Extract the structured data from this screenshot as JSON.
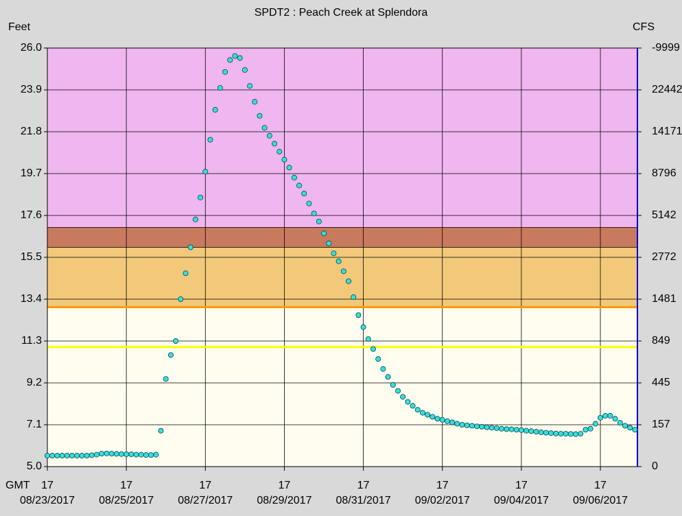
{
  "chart_data": {
    "type": "scatter",
    "title": "SPDT2  :  Peach Creek at Splendora",
    "ylabel": "Feet",
    "y2label": "CFS",
    "xlabel": "GMT",
    "ylim": [
      5.0,
      26.0
    ],
    "yticks": [
      {
        "value": 5.0,
        "label": "5.0"
      },
      7.1,
      9.2,
      11.3,
      13.4,
      15.5,
      17.6,
      19.7,
      21.8,
      23.9,
      {
        "value": 26.0,
        "label": "26.0"
      }
    ],
    "y2_labels": [
      "0",
      "157",
      "445",
      "849",
      "1481",
      "2772",
      "5142",
      "8796",
      "14171",
      "22442",
      "-9999"
    ],
    "xlim": [
      "2017-08-23T17:00",
      "2017-09-07T15:30"
    ],
    "xticks": [
      {
        "value": "2017-08-23T17:00",
        "label": "17"
      },
      {
        "value": "2017-08-25T17:00",
        "label": "17"
      },
      {
        "value": "2017-08-27T17:00",
        "label": "17"
      },
      {
        "value": "2017-08-29T17:00",
        "label": "17"
      },
      {
        "value": "2017-08-31T17:00",
        "label": "17"
      },
      {
        "value": "2017-09-02T17:00",
        "label": "17"
      },
      {
        "value": "2017-09-04T17:00",
        "label": "17"
      },
      {
        "value": "2017-09-06T17:00",
        "label": "17"
      }
    ],
    "xtick_dates": [
      "08/23/2017",
      "08/25/2017",
      "08/27/2017",
      "08/29/2017",
      "08/31/2017",
      "09/02/2017",
      "09/04/2017",
      "09/06/2017"
    ],
    "grid": true,
    "bands": [
      {
        "from": 17.0,
        "to": 26.0,
        "color": "#efb6ef"
      },
      {
        "from": 16.0,
        "to": 17.0,
        "color": "#c87a5e"
      },
      {
        "from": 13.0,
        "to": 16.0,
        "color": "#f2c97a"
      },
      {
        "from": 5.0,
        "to": 13.0,
        "color": "#fffdf0"
      }
    ],
    "stage_lines": [
      {
        "value": 13.0,
        "color": "#ff9900"
      },
      {
        "value": 11.0,
        "color": "#ffff00"
      }
    ],
    "color": "#33e0e0",
    "x": [
      "2017-08-23T17:00",
      "2017-08-23T20:00",
      "2017-08-23T23:00",
      "2017-08-24T02:00",
      "2017-08-24T05:00",
      "2017-08-24T08:00",
      "2017-08-24T11:00",
      "2017-08-24T14:00",
      "2017-08-24T17:00",
      "2017-08-24T20:00",
      "2017-08-24T23:00",
      "2017-08-25T02:00",
      "2017-08-25T05:00",
      "2017-08-25T08:00",
      "2017-08-25T11:00",
      "2017-08-25T14:00",
      "2017-08-25T17:00",
      "2017-08-25T20:00",
      "2017-08-25T23:00",
      "2017-08-26T02:00",
      "2017-08-26T05:00",
      "2017-08-26T08:00",
      "2017-08-26T11:00",
      "2017-08-26T14:00",
      "2017-08-26T17:00",
      "2017-08-26T20:00",
      "2017-08-26T23:00",
      "2017-08-27T02:00",
      "2017-08-27T05:00",
      "2017-08-27T08:00",
      "2017-08-27T11:00",
      "2017-08-27T14:00",
      "2017-08-27T17:00",
      "2017-08-27T20:00",
      "2017-08-27T23:00",
      "2017-08-28T02:00",
      "2017-08-28T05:00",
      "2017-08-28T08:00",
      "2017-08-28T11:00",
      "2017-08-28T14:00",
      "2017-08-28T17:00",
      "2017-08-28T20:00",
      "2017-08-28T23:00",
      "2017-08-29T02:00",
      "2017-08-29T05:00",
      "2017-08-29T08:00",
      "2017-08-29T11:00",
      "2017-08-29T14:00",
      "2017-08-29T17:00",
      "2017-08-29T20:00",
      "2017-08-29T23:00",
      "2017-08-30T02:00",
      "2017-08-30T05:00",
      "2017-08-30T08:00",
      "2017-08-30T11:00",
      "2017-08-30T14:00",
      "2017-08-30T17:00",
      "2017-08-30T20:00",
      "2017-08-30T23:00",
      "2017-08-31T02:00",
      "2017-08-31T05:00",
      "2017-08-31T08:00",
      "2017-08-31T11:00",
      "2017-08-31T14:00",
      "2017-08-31T17:00",
      "2017-08-31T20:00",
      "2017-08-31T23:00",
      "2017-09-01T02:00",
      "2017-09-01T05:00",
      "2017-09-01T08:00",
      "2017-09-01T11:00",
      "2017-09-01T14:00",
      "2017-09-01T17:00",
      "2017-09-01T20:00",
      "2017-09-01T23:00",
      "2017-09-02T02:00",
      "2017-09-02T05:00",
      "2017-09-02T08:00",
      "2017-09-02T11:00",
      "2017-09-02T14:00",
      "2017-09-02T17:00",
      "2017-09-02T20:00",
      "2017-09-02T23:00",
      "2017-09-03T02:00",
      "2017-09-03T05:00",
      "2017-09-03T08:00",
      "2017-09-03T11:00",
      "2017-09-03T14:00",
      "2017-09-03T17:00",
      "2017-09-03T20:00",
      "2017-09-03T23:00",
      "2017-09-04T02:00",
      "2017-09-04T05:00",
      "2017-09-04T08:00",
      "2017-09-04T11:00",
      "2017-09-04T14:00",
      "2017-09-04T17:00",
      "2017-09-04T20:00",
      "2017-09-04T23:00",
      "2017-09-05T02:00",
      "2017-09-05T05:00",
      "2017-09-05T08:00",
      "2017-09-05T11:00",
      "2017-09-05T14:00",
      "2017-09-05T17:00",
      "2017-09-05T20:00",
      "2017-09-05T23:00",
      "2017-09-06T02:00",
      "2017-09-06T05:00",
      "2017-09-06T08:00",
      "2017-09-06T11:00",
      "2017-09-06T14:00",
      "2017-09-06T17:00",
      "2017-09-06T20:00",
      "2017-09-06T23:00",
      "2017-09-07T02:00",
      "2017-09-07T05:00",
      "2017-09-07T08:00",
      "2017-09-07T11:00",
      "2017-09-07T14:00"
    ],
    "values": [
      5.55,
      5.55,
      5.55,
      5.55,
      5.55,
      5.55,
      5.55,
      5.55,
      5.55,
      5.57,
      5.6,
      5.65,
      5.66,
      5.65,
      5.64,
      5.63,
      5.62,
      5.62,
      5.6,
      5.6,
      5.58,
      5.58,
      5.6,
      6.8,
      9.4,
      10.6,
      11.3,
      13.4,
      14.7,
      16.0,
      17.4,
      18.5,
      19.8,
      21.4,
      22.9,
      24.0,
      24.8,
      25.4,
      25.6,
      25.5,
      24.9,
      24.1,
      23.3,
      22.6,
      22.0,
      21.6,
      21.2,
      20.8,
      20.4,
      20.0,
      19.5,
      19.1,
      18.7,
      18.2,
      17.7,
      17.3,
      16.7,
      16.2,
      15.7,
      15.3,
      14.8,
      14.3,
      13.5,
      12.6,
      12.0,
      11.4,
      10.9,
      10.4,
      9.9,
      9.5,
      9.1,
      8.8,
      8.5,
      8.25,
      8.05,
      7.85,
      7.7,
      7.6,
      7.5,
      7.4,
      7.35,
      7.28,
      7.22,
      7.15,
      7.1,
      7.07,
      7.05,
      7.02,
      7.0,
      6.97,
      6.95,
      6.93,
      6.9,
      6.88,
      6.87,
      6.85,
      6.83,
      6.8,
      6.78,
      6.75,
      6.72,
      6.7,
      6.68,
      6.66,
      6.65,
      6.65,
      6.64,
      6.63,
      6.65,
      6.85,
      6.9,
      7.15,
      7.45,
      7.55,
      7.55,
      7.4,
      7.2,
      7.05,
      6.95,
      6.85
    ]
  }
}
